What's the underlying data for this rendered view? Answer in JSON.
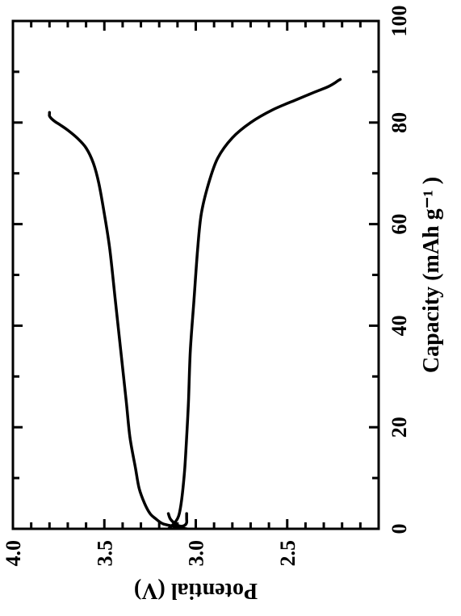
{
  "chart": {
    "type": "line",
    "rotated_ccw": true,
    "background_color": "#ffffff",
    "line_color": "#000000",
    "axis_color": "#000000",
    "line_width": 3.5,
    "axis_line_width": 3,
    "tick_line_width": 3,
    "x_axis": {
      "label": "Capacity (mAh g⁻¹ )",
      "label_fontsize": 28,
      "min": 0,
      "max": 100,
      "ticks": [
        0,
        20,
        40,
        60,
        80,
        100
      ],
      "tick_fontsize": 26,
      "tick_length_major": 12,
      "tick_length_minor": 8,
      "minor_ticks": [
        10,
        30,
        50,
        70,
        90
      ]
    },
    "y_axis": {
      "label": "Potential (V)",
      "label_fontsize": 28,
      "min": 2.0,
      "max": 4.0,
      "ticks": [
        2.5,
        3.0,
        3.5,
        4.0
      ],
      "tick_fontsize": 26,
      "tick_length_major": 12,
      "tick_length_minor": 8,
      "minor_ticks": [
        2.1,
        2.2,
        2.3,
        2.4,
        2.6,
        2.7,
        2.8,
        2.9,
        3.1,
        3.2,
        3.3,
        3.4,
        3.6,
        3.7,
        3.8,
        3.9
      ]
    },
    "series": [
      {
        "name": "charge",
        "x": [
          0,
          0.5,
          1,
          2,
          3,
          5,
          8,
          12,
          18,
          25,
          35,
          45,
          55,
          62,
          68,
          72,
          75,
          77,
          78.5,
          79.5,
          80.2,
          80.8,
          81.3,
          81.7,
          82
        ],
        "y": [
          3.05,
          3.12,
          3.18,
          3.22,
          3.25,
          3.28,
          3.31,
          3.33,
          3.36,
          3.38,
          3.41,
          3.44,
          3.47,
          3.5,
          3.53,
          3.56,
          3.6,
          3.65,
          3.7,
          3.74,
          3.77,
          3.79,
          3.8,
          3.8,
          3.8
        ]
      },
      {
        "name": "discharge",
        "x": [
          0,
          1,
          2,
          3,
          5,
          8,
          12,
          18,
          25,
          35,
          45,
          55,
          62,
          68,
          73,
          77,
          80,
          82.5,
          84.5,
          86,
          87,
          87.8,
          88.3,
          88.5
        ],
        "y": [
          3.15,
          3.12,
          3.1,
          3.09,
          3.08,
          3.07,
          3.06,
          3.05,
          3.04,
          3.03,
          3.01,
          2.99,
          2.97,
          2.93,
          2.88,
          2.8,
          2.7,
          2.58,
          2.45,
          2.35,
          2.28,
          2.24,
          2.22,
          2.21
        ]
      },
      {
        "name": "hook",
        "x": [
          3,
          2,
          1.2,
          0.7,
          0.5,
          0.7,
          1.2,
          2,
          3
        ],
        "y": [
          3.15,
          3.14,
          3.12,
          3.1,
          3.08,
          3.06,
          3.05,
          3.05,
          3.05
        ]
      }
    ]
  }
}
